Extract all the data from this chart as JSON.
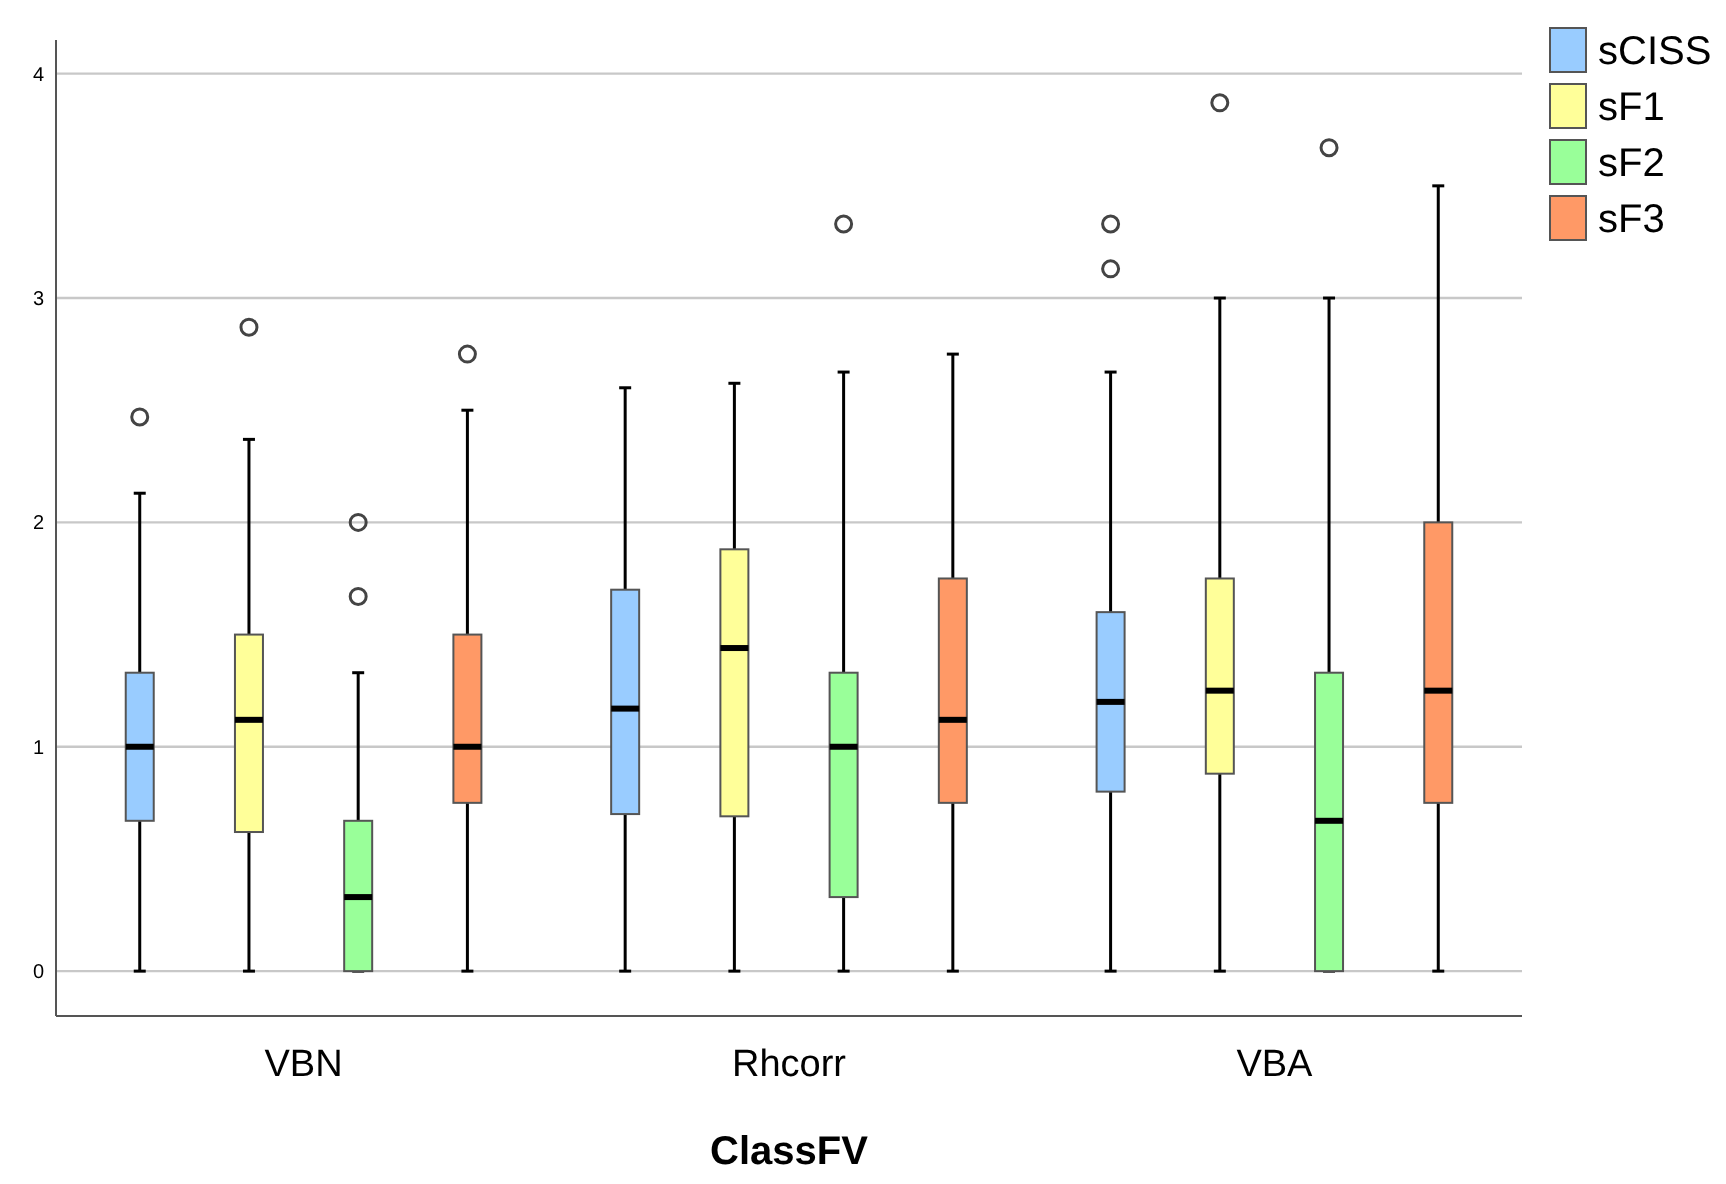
{
  "chart_data": {
    "type": "box",
    "xlabel": "ClassFV",
    "categories": [
      "VBN",
      "Rhcorr",
      "VBA"
    ],
    "ylim": [
      -0.2,
      4.15
    ],
    "yticks": [
      0,
      1,
      2,
      3,
      4
    ],
    "grid": "y",
    "legend": "top right",
    "series": [
      {
        "name": "sCISS",
        "color": "#99ccff",
        "boxes": [
          {
            "low": 0,
            "q1": 0.67,
            "median": 1.0,
            "q3": 1.33,
            "high": 2.13,
            "outliers": [
              2.47
            ]
          },
          {
            "low": 0,
            "q1": 0.7,
            "median": 1.17,
            "q3": 1.7,
            "high": 2.6
          },
          {
            "low": 0,
            "q1": 0.8,
            "median": 1.2,
            "q3": 1.6,
            "high": 2.67,
            "outliers": [
              3.13,
              3.33
            ]
          }
        ]
      },
      {
        "name": "sF1",
        "color": "#ffff99",
        "boxes": [
          {
            "low": 0,
            "q1": 0.62,
            "median": 1.12,
            "q3": 1.5,
            "high": 2.37,
            "outliers": [
              2.87
            ]
          },
          {
            "low": 0,
            "q1": 0.69,
            "median": 1.44,
            "q3": 1.88,
            "high": 2.62
          },
          {
            "low": 0,
            "q1": 0.88,
            "median": 1.25,
            "q3": 1.75,
            "high": 3.0,
            "outliers": [
              3.87
            ]
          }
        ]
      },
      {
        "name": "sF2",
        "color": "#99ff99",
        "boxes": [
          {
            "low": 0,
            "q1": 0,
            "median": 0.33,
            "q3": 0.67,
            "high": 1.33,
            "outliers": [
              1.67,
              2.0
            ]
          },
          {
            "low": 0,
            "q1": 0.33,
            "median": 1.0,
            "q3": 1.33,
            "high": 2.67,
            "outliers": [
              3.33
            ]
          },
          {
            "low": 0,
            "q1": 0,
            "median": 0.67,
            "q3": 1.33,
            "high": 3.0,
            "outliers": [
              3.67
            ]
          }
        ]
      },
      {
        "name": "sF3",
        "color": "#ff9966",
        "boxes": [
          {
            "low": 0,
            "q1": 0.75,
            "median": 1.0,
            "q3": 1.5,
            "high": 2.5,
            "outliers": [
              2.75
            ]
          },
          {
            "low": 0,
            "q1": 0.75,
            "median": 1.12,
            "q3": 1.75,
            "high": 2.75
          },
          {
            "low": 0,
            "q1": 0.75,
            "median": 1.25,
            "q3": 2.0,
            "high": 3.5
          }
        ]
      }
    ]
  }
}
